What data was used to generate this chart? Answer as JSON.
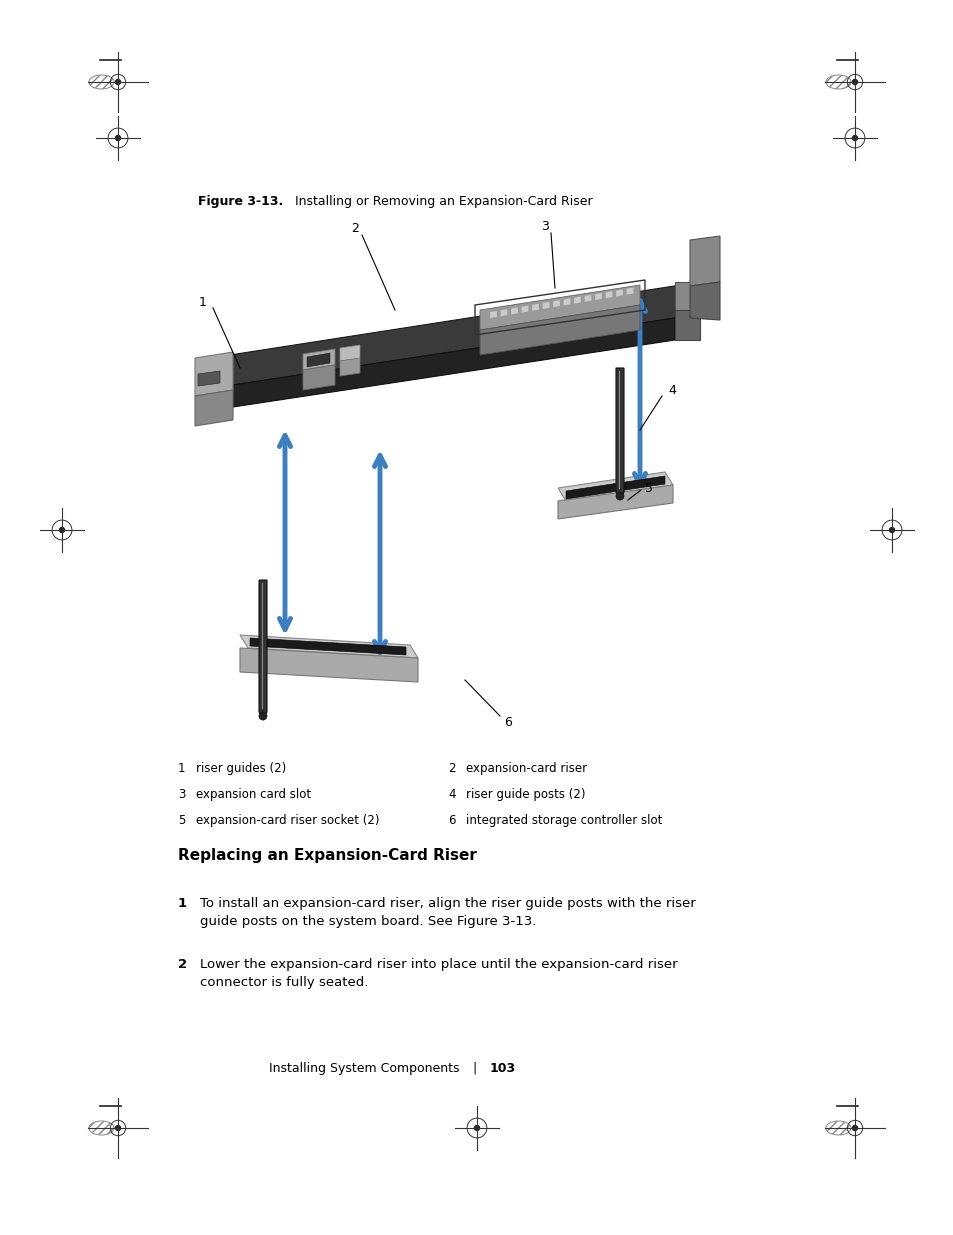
{
  "figure_title_bold": "Figure 3-13.",
  "figure_title_normal": "    Installing or Removing an Expansion-Card Riser",
  "section_title": "Replacing an Expansion-Card Riser",
  "legend": [
    [
      "1",
      "riser guides (2)",
      "2",
      "expansion-card riser"
    ],
    [
      "3",
      "expansion card slot",
      "4",
      "riser guide posts (2)"
    ],
    [
      "5",
      "expansion-card riser socket (2)",
      "6",
      "integrated storage controller slot"
    ]
  ],
  "step1_num": "1",
  "step1_text": "To install an expansion-card riser, align the riser guide posts with the riser\nguide posts on the system board. See Figure 3-13.",
  "step2_num": "2",
  "step2_text": "Lower the expansion-card riser into place until the expansion-card riser\nconnector is fully seated.",
  "footer_text": "Installing System Components",
  "footer_page": "103",
  "bg_color": "#ffffff",
  "text_color": "#000000",
  "arrow_color": "#3a7fc1",
  "dark_gray": "#2d2d2d",
  "mid_gray": "#7a7a7a",
  "light_gray": "#c8c8c8",
  "lighter_gray": "#e0e0e0",
  "slot_dark": "#1a1a1a",
  "registration_color": "#555555"
}
